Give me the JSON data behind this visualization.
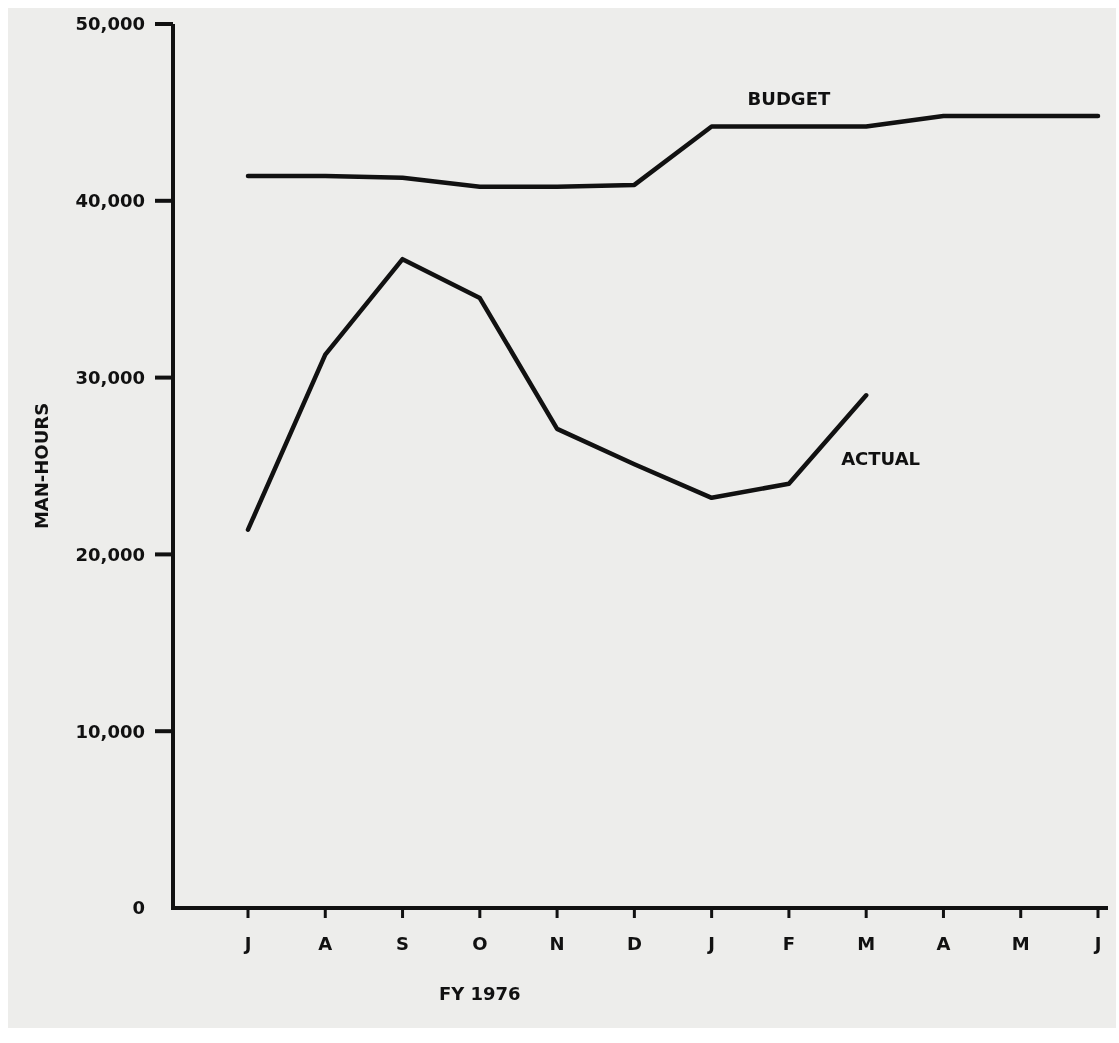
{
  "chart_data": {
    "type": "line",
    "xlabel": "FY 1976",
    "ylabel": "MAN-HOURS",
    "categories": [
      "J",
      "A",
      "S",
      "O",
      "N",
      "D",
      "J",
      "F",
      "M",
      "A",
      "M",
      "J"
    ],
    "series": [
      {
        "name": "BUDGET",
        "color": "#111111",
        "values": [
          41400,
          41400,
          41300,
          40800,
          40800,
          40900,
          44200,
          44200,
          44200,
          44800,
          44800,
          44800
        ]
      },
      {
        "name": "ACTUAL",
        "color": "#111111",
        "values": [
          21400,
          31300,
          36700,
          34500,
          27100,
          25100,
          23200,
          24000,
          29000,
          null,
          null,
          null
        ]
      }
    ],
    "ylim": [
      0,
      50000
    ],
    "yticks": [
      0,
      {
        "value": 10000,
        "label": "10,000"
      },
      {
        "value": 20000,
        "label": "20,000"
      },
      {
        "value": 30000,
        "label": "30,000"
      },
      {
        "value": 40000,
        "label": "40,000"
      },
      {
        "value": 50000,
        "label": "50,000"
      }
    ],
    "grid": false,
    "marker": "none",
    "line_style": "solid"
  }
}
